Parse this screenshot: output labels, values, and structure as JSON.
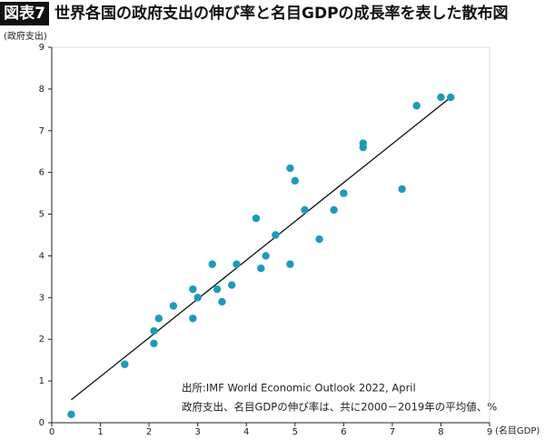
{
  "chart_data": {
    "type": "scatter",
    "badge": "図表7",
    "title": "世界各国の政府支出の伸び率と名目GDPの成長率を表した散布図",
    "y_label": "(政府支出)",
    "x_label": "(名目GDP)",
    "notes": [
      "出所:IMF World Economic Outlook 2022, April",
      "政府支出、名目GDPの伸び率は、共に2000－2019年の平均値、%"
    ],
    "color": "#1e9ab8",
    "x": [
      0.4,
      1.5,
      2.1,
      2.1,
      2.2,
      2.5,
      2.9,
      2.9,
      3.0,
      3.3,
      3.4,
      3.5,
      3.7,
      3.8,
      4.2,
      4.3,
      4.4,
      4.6,
      4.9,
      4.9,
      5.0,
      5.2,
      5.5,
      5.8,
      6.0,
      6.4,
      6.4,
      7.2,
      7.5,
      8.0,
      8.2
    ],
    "values": [
      0.2,
      1.4,
      1.9,
      2.2,
      2.5,
      2.8,
      2.5,
      3.2,
      3.0,
      3.8,
      3.2,
      2.9,
      3.3,
      3.8,
      4.9,
      3.7,
      4.0,
      4.5,
      6.1,
      3.8,
      5.8,
      5.1,
      4.4,
      5.1,
      5.5,
      6.7,
      6.6,
      5.6,
      7.6,
      7.8,
      7.8
    ],
    "trendline": {
      "x": [
        0.4,
        8.2
      ],
      "y": [
        0.55,
        7.8
      ]
    },
    "xlim": [
      0,
      9
    ],
    "ylim": [
      0,
      9
    ],
    "xticks": [
      0,
      1,
      2,
      3,
      4,
      5,
      6,
      7,
      8,
      9
    ],
    "yticks": [
      0,
      1,
      2,
      3,
      4,
      5,
      6,
      7,
      8,
      9
    ]
  }
}
